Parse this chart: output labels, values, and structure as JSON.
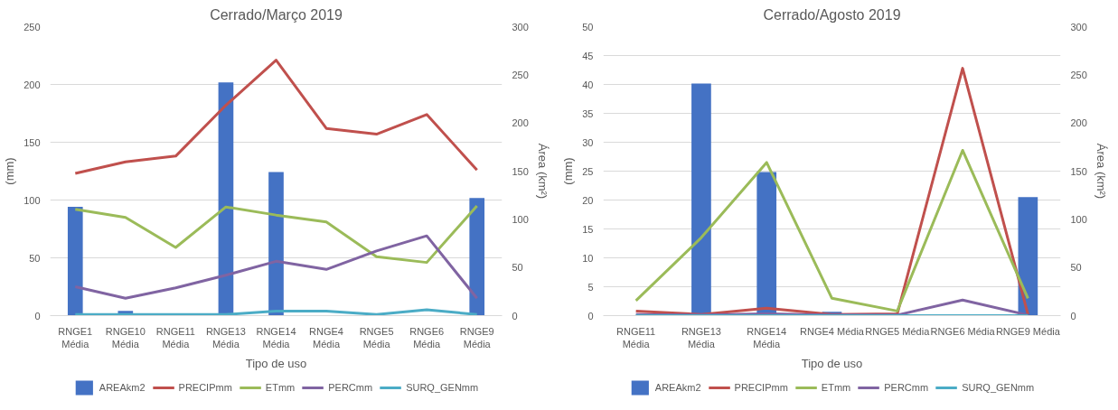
{
  "chart_data": [
    {
      "type": "line",
      "title": "Cerrado/Março 2019",
      "xlabel": "Tipo de uso",
      "ylabel": "(mm)",
      "y2label": "Área (km²)",
      "categories": [
        "RNGE1\nMédia",
        "RNGE10\nMédia",
        "RNGE11\nMédia",
        "RNGE13\nMédia",
        "RNGE14\nMédia",
        "RNGE4\nMédia",
        "RNGE5\nMédia",
        "RNGE6\nMédia",
        "RNGE9\nMédia"
      ],
      "ylim": [
        0,
        250
      ],
      "yticks": [
        0,
        50,
        100,
        150,
        200,
        250
      ],
      "y2lim": [
        0,
        300
      ],
      "y2ticks": [
        0,
        50,
        100,
        150,
        200,
        250,
        300
      ],
      "grid": "y",
      "legend": "bottom",
      "line_style": "solid",
      "series": [
        {
          "name": "AREAkm2",
          "type": "bar",
          "axis": "y2",
          "color": "#4472c4",
          "values": [
            113,
            5,
            0,
            242,
            149,
            0,
            0,
            0,
            122
          ]
        },
        {
          "name": "PRECIPmm",
          "color": "#c0504d",
          "values": [
            123,
            133,
            138,
            182,
            221,
            162,
            157,
            174,
            126
          ]
        },
        {
          "name": "ETmm",
          "color": "#9bbb59",
          "values": [
            92,
            85,
            59,
            94,
            87,
            81,
            51,
            46,
            95
          ]
        },
        {
          "name": "PERCmm",
          "color": "#8064a2",
          "values": [
            25,
            15,
            24,
            35,
            47,
            40,
            56,
            69,
            15
          ]
        },
        {
          "name": "SURQ_GENmm",
          "color": "#4bacc6",
          "values": [
            1,
            1,
            1,
            1,
            4,
            4,
            1,
            5,
            1
          ]
        }
      ]
    },
    {
      "type": "line",
      "title": "Cerrado/Agosto 2019",
      "xlabel": "Tipo de uso",
      "ylabel": "(mm)",
      "y2label": "Área (km²)",
      "categories": [
        "RNGE11\nMédia",
        "RNGE13\nMédia",
        "RNGE14\nMédia",
        "RNGE4 Média",
        "RNGE5 Média",
        "RNGE6 Média",
        "RNGE9 Média"
      ],
      "ylim": [
        0,
        50
      ],
      "yticks": [
        0,
        5,
        10,
        15,
        20,
        25,
        30,
        35,
        40,
        45,
        50
      ],
      "y2lim": [
        0,
        300
      ],
      "y2ticks": [
        0,
        50,
        100,
        150,
        200,
        250,
        300
      ],
      "grid": "y",
      "legend": "bottom",
      "line_style": "solid",
      "series": [
        {
          "name": "AREAkm2",
          "type": "bar",
          "axis": "y2",
          "color": "#4472c4",
          "values": [
            0,
            241,
            149,
            4,
            0,
            0,
            123
          ]
        },
        {
          "name": "PRECIPmm",
          "color": "#c0504d",
          "values": [
            0.8,
            0.2,
            1.3,
            0.2,
            0.3,
            42.8,
            0.2
          ]
        },
        {
          "name": "ETmm",
          "color": "#9bbb59",
          "values": [
            2.6,
            13.5,
            26.5,
            3.0,
            0.8,
            28.6,
            3.0
          ]
        },
        {
          "name": "PERCmm",
          "color": "#8064a2",
          "values": [
            0.2,
            0.1,
            0.3,
            0.1,
            0.1,
            2.7,
            0.1
          ]
        },
        {
          "name": "SURQ_GENmm",
          "color": "#4bacc6",
          "values": [
            0,
            0,
            0,
            0,
            0,
            0,
            0
          ]
        }
      ]
    }
  ]
}
